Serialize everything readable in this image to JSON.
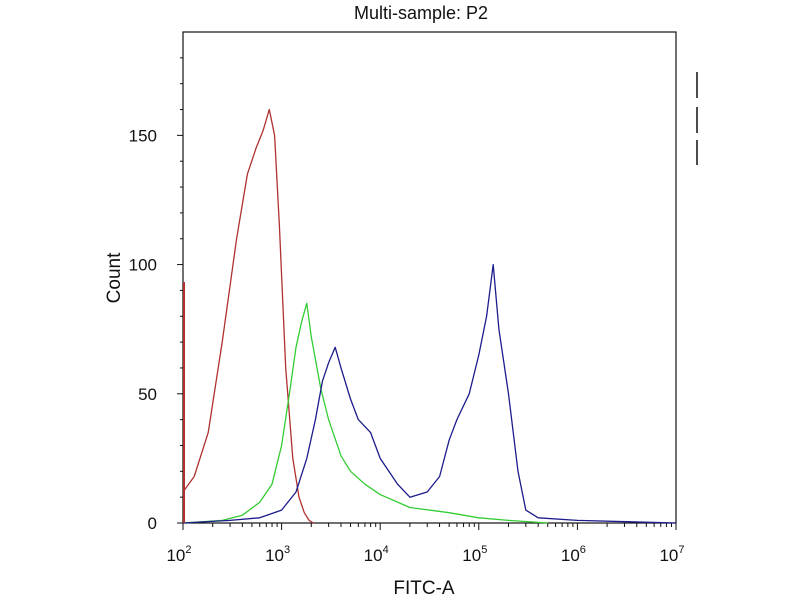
{
  "chart_data": {
    "type": "line",
    "title": "Multi-sample: P2",
    "xlabel": "FITC-A",
    "ylabel": "Count",
    "x_scale": "log10",
    "xlim": [
      100,
      10000000
    ],
    "ylim": [
      0,
      190
    ],
    "x_ticks": [
      {
        "value": 100,
        "base": "10",
        "exp": "2"
      },
      {
        "value": 1000,
        "base": "10",
        "exp": "3"
      },
      {
        "value": 10000,
        "base": "10",
        "exp": "4"
      },
      {
        "value": 100000,
        "base": "10",
        "exp": "5"
      },
      {
        "value": 1000000,
        "base": "10",
        "exp": "6"
      },
      {
        "value": 10000000,
        "base": "10",
        "exp": "7"
      }
    ],
    "y_ticks": [
      "0",
      "50",
      "100",
      "150"
    ],
    "y_tick_values": [
      0,
      50,
      100,
      150
    ],
    "grid": false,
    "legend": "right, partially cut off (line swatches only, no visible text)",
    "series": [
      {
        "color": "#b03030",
        "x": [
          100,
          130,
          180,
          250,
          350,
          450,
          550,
          650,
          750,
          850,
          950,
          1100,
          1300,
          1500,
          1700,
          1900,
          2100
        ],
        "y": [
          12,
          18,
          35,
          70,
          110,
          135,
          145,
          152,
          160,
          150,
          115,
          60,
          25,
          10,
          4,
          1,
          0
        ]
      },
      {
        "color": "#33cc33",
        "x": [
          100,
          250,
          400,
          600,
          800,
          1000,
          1200,
          1400,
          1600,
          1800,
          2000,
          2500,
          3000,
          4000,
          5000,
          7000,
          10000,
          20000,
          50000,
          100000,
          200000,
          500000
        ],
        "y": [
          0,
          1,
          3,
          8,
          15,
          30,
          50,
          68,
          78,
          85,
          72,
          52,
          40,
          26,
          20,
          15,
          11,
          6,
          4,
          2,
          1,
          0
        ]
      },
      {
        "color": "#1c1c8c",
        "x": [
          100,
          300,
          600,
          1000,
          1400,
          1800,
          2200,
          2600,
          3000,
          3500,
          4000,
          5000,
          6000,
          8000,
          10000,
          15000,
          20000,
          30000,
          40000,
          50000,
          60000,
          80000,
          100000,
          120000,
          140000,
          160000,
          200000,
          250000,
          300000,
          400000,
          1000000,
          10000000
        ],
        "y": [
          0,
          1,
          2,
          5,
          12,
          25,
          40,
          55,
          62,
          68,
          60,
          48,
          40,
          35,
          25,
          15,
          10,
          12,
          18,
          32,
          40,
          50,
          65,
          80,
          100,
          75,
          50,
          20,
          5,
          2,
          1,
          0
        ]
      }
    ],
    "colors": {
      "axis": "#111111",
      "background": "#ffffff",
      "red_series": "#b03030",
      "green_series": "#33cc33",
      "blue_series": "#1c1c8c"
    }
  }
}
